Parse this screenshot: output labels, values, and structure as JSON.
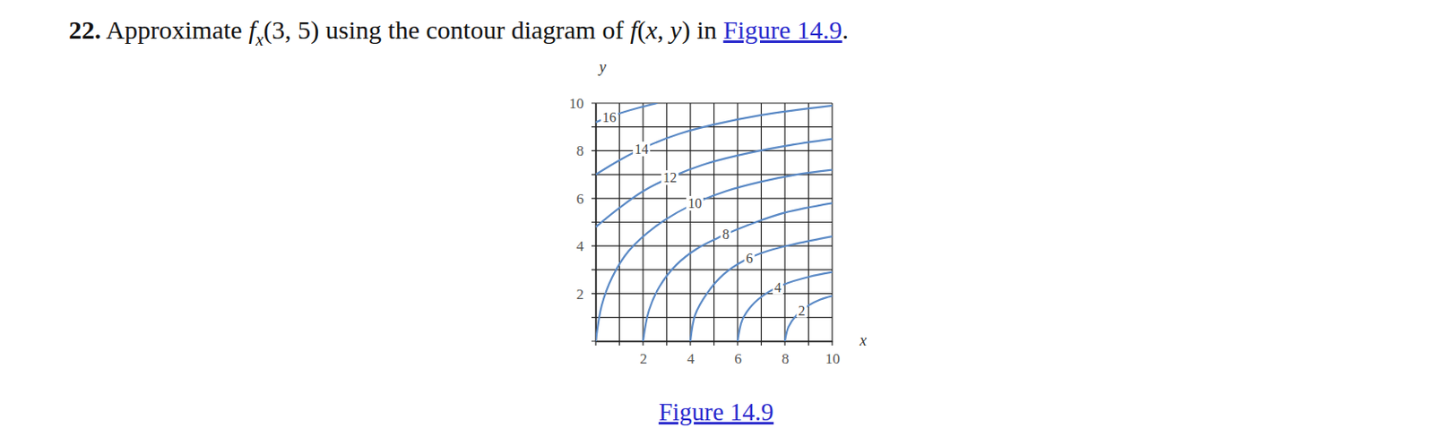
{
  "problem": [
    {
      "text": "22.",
      "style": "bold"
    },
    {
      "text": " Approximate "
    },
    {
      "text": "f",
      "style": "italic"
    },
    {
      "text": "x",
      "style": "sub"
    },
    {
      "text": "(3, 5) using the contour diagram of "
    },
    {
      "text": "f",
      "style": "italic"
    },
    {
      "text": "("
    },
    {
      "text": "x",
      "style": "italic"
    },
    {
      "text": ", "
    },
    {
      "text": "y",
      "style": "italic"
    },
    {
      "text": ") in "
    },
    {
      "text": "Figure 14.9",
      "style": "link"
    },
    {
      "text": "."
    }
  ],
  "caption": "Figure 14.9",
  "chart_data": {
    "type": "contour",
    "x_label": "x",
    "y_label": "y",
    "xlim": [
      0,
      10
    ],
    "ylim": [
      0,
      10
    ],
    "xticks": [
      2,
      4,
      6,
      8,
      10
    ],
    "yticks": [
      2,
      4,
      6,
      8,
      10
    ],
    "xgrid": [
      0,
      1,
      2,
      3,
      4,
      5,
      6,
      7,
      8,
      9,
      10
    ],
    "ygrid": [
      0,
      1,
      2,
      3,
      4,
      5,
      6,
      7,
      8,
      9,
      10
    ],
    "grid": true,
    "color": "#5b8ac6",
    "series": [
      {
        "level": 2,
        "x": [
          8,
          8.15,
          8.5,
          9,
          9.5,
          10
        ],
        "y": [
          0,
          0.6,
          1.1,
          1.5,
          1.75,
          1.9
        ]
      },
      {
        "level": 4,
        "x": [
          6,
          6.2,
          6.6,
          7.2,
          8,
          9,
          10
        ],
        "y": [
          0,
          0.9,
          1.5,
          2.0,
          2.4,
          2.7,
          2.9
        ]
      },
      {
        "level": 6,
        "x": [
          4,
          4.2,
          4.7,
          5.4,
          6.3,
          7.3,
          8.5,
          10
        ],
        "y": [
          0,
          1.1,
          2.0,
          2.8,
          3.4,
          3.8,
          4.1,
          4.4
        ]
      },
      {
        "level": 8,
        "x": [
          2,
          2.25,
          2.7,
          3.4,
          4.3,
          5.3,
          6.5,
          8,
          10
        ],
        "y": [
          0,
          1.3,
          2.3,
          3.2,
          3.9,
          4.4,
          4.9,
          5.4,
          5.8
        ]
      },
      {
        "level": 10,
        "x": [
          0,
          0.25,
          0.7,
          1.4,
          2.5,
          4,
          5.5,
          7,
          8.5,
          10
        ],
        "y": [
          0,
          1.5,
          2.7,
          3.8,
          4.8,
          5.7,
          6.3,
          6.7,
          7.0,
          7.2
        ]
      },
      {
        "level": 12,
        "x": [
          0,
          1,
          2,
          3.2,
          4.5,
          6,
          8,
          10
        ],
        "y": [
          4.8,
          5.6,
          6.3,
          6.9,
          7.4,
          7.8,
          8.2,
          8.5
        ]
      },
      {
        "level": 14,
        "x": [
          0,
          1,
          2.2,
          3.5,
          5,
          7,
          10
        ],
        "y": [
          7.0,
          7.6,
          8.2,
          8.7,
          9.1,
          9.5,
          9.9
        ]
      },
      {
        "level": 16,
        "x": [
          0,
          0.8,
          1.8,
          2.6
        ],
        "y": [
          9.2,
          9.5,
          9.8,
          10
        ]
      }
    ]
  }
}
